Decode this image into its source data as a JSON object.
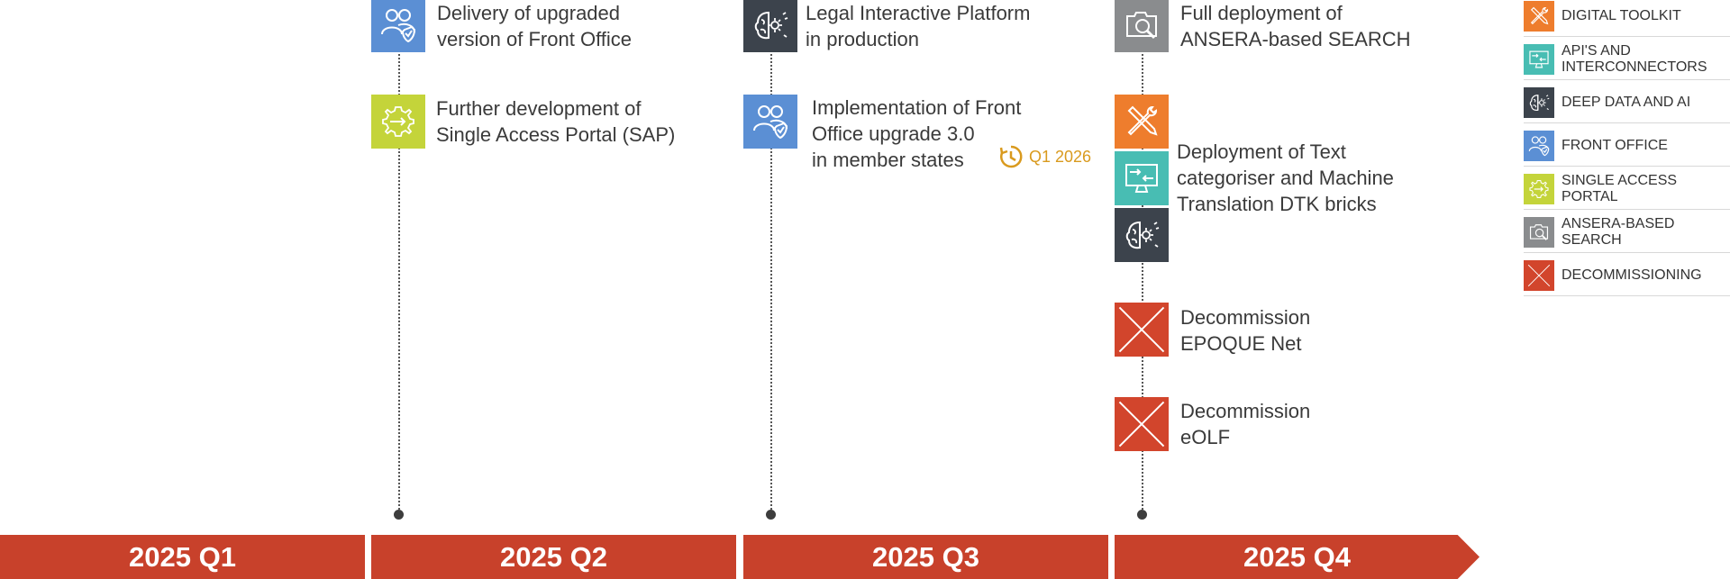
{
  "colors": {
    "digital_toolkit": "#ee7d2d",
    "apis": "#48bdb3",
    "deep_data": "#3c434c",
    "front_office": "#5b8fd4",
    "single_access": "#c4d43a",
    "ansera": "#8a8c8e",
    "decommission": "#d2452c",
    "timeline_bar": "#c8412b",
    "deadline": "#d99a1e"
  },
  "milestones": {
    "q2_front_office_upgrade": {
      "line1": "Delivery of upgraded",
      "line2": "version of Front Office"
    },
    "q2_sap": {
      "line1": "Further development of",
      "line2": "Single Access Portal (SAP)"
    },
    "q3_legal_platform": {
      "line1": "Legal Interactive Platform",
      "line2": "in production"
    },
    "q3_front_office_3": {
      "line1": "Implementation of Front",
      "line2": "Office upgrade 3.0",
      "line3": "in member states",
      "deadline": "Q1 2026"
    },
    "q4_ansera": {
      "line1": "Full deployment of",
      "line2": "ANSERA-based SEARCH"
    },
    "q4_dtk": {
      "line1": "Deployment of Text",
      "line2": "categoriser and Machine",
      "line3": "Translation DTK bricks"
    },
    "q4_epoque": {
      "line1": "Decommission",
      "line2": "EPOQUE Net"
    },
    "q4_eolf": {
      "line1": "Decommission",
      "line2": "eOLF"
    }
  },
  "timeline": [
    {
      "label": "2025 Q1"
    },
    {
      "label": "2025 Q2"
    },
    {
      "label": "2025 Q3"
    },
    {
      "label": "2025 Q4"
    }
  ],
  "legend": [
    {
      "label": "DIGITAL TOOLKIT",
      "icon": "tools-icon",
      "color": "#ee7d2d"
    },
    {
      "label": "API'S AND\nINTERCONNECTORS",
      "icon": "monitor-arrows-icon",
      "color": "#48bdb3"
    },
    {
      "label": "DEEP DATA AND AI",
      "icon": "brain-icon",
      "color": "#3c434c"
    },
    {
      "label": "FRONT OFFICE",
      "icon": "users-shield-icon",
      "color": "#5b8fd4"
    },
    {
      "label": "SINGLE ACCESS\nPORTAL",
      "icon": "gear-arrow-icon",
      "color": "#c4d43a"
    },
    {
      "label": "ANSERA-BASED\nSEARCH",
      "icon": "search-photo-icon",
      "color": "#8a8c8e"
    },
    {
      "label": "DECOMMISSIONING",
      "icon": "cross-icon",
      "color": "#d2452c"
    }
  ]
}
